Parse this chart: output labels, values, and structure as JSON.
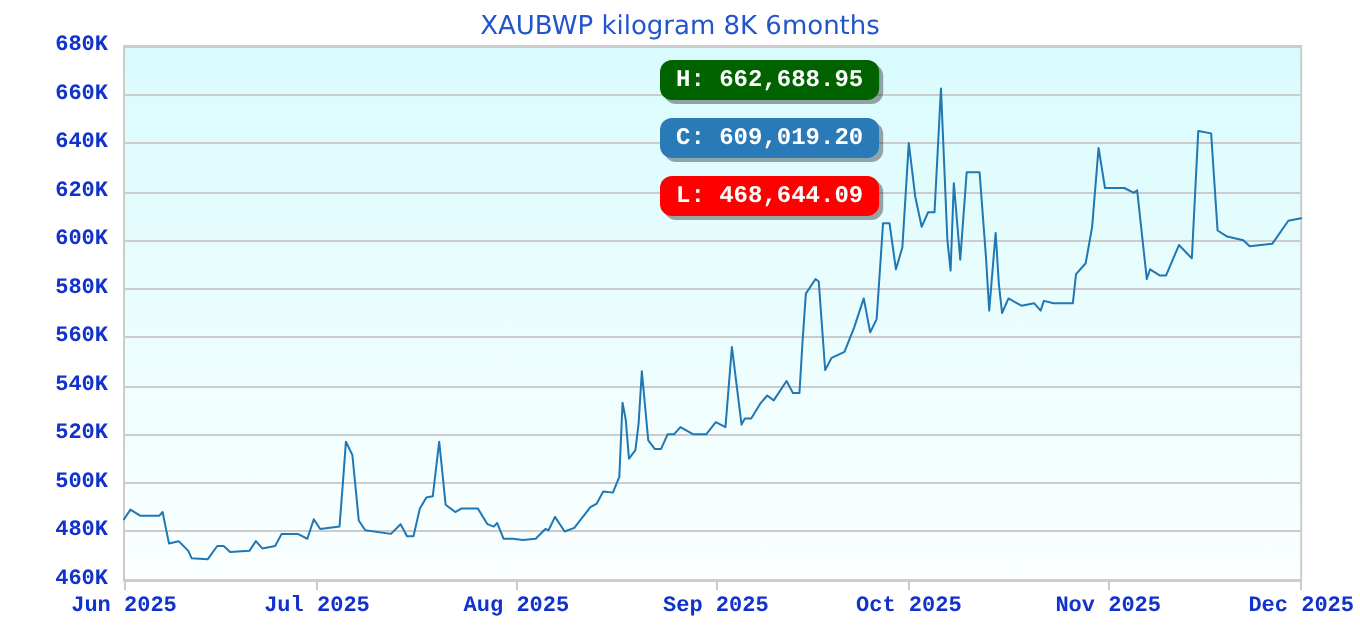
{
  "chart_data": {
    "type": "line",
    "title": "XAUBWP kilogram 8K 6months",
    "annotations": [
      "H: 662,688.95",
      "C: 609,019.20",
      "L: 468,644.09"
    ],
    "x": [
      "2025-06-01T00:00",
      "2025-06-02T00:00",
      "2025-06-03T12:00",
      "2025-06-06T12:00",
      "2025-06-07T00:00",
      "2025-06-08T00:00",
      "2025-06-09T12:00",
      "2025-06-11T00:00",
      "2025-06-11T12:00",
      "2025-06-14T00:00",
      "2025-06-15T12:00",
      "2025-06-16T12:00",
      "2025-06-17T12:00",
      "2025-06-20T12:00",
      "2025-06-21T12:00",
      "2025-06-22T12:00",
      "2025-06-24T12:00",
      "2025-06-25T12:00",
      "2025-06-28T00:00",
      "2025-06-29T12:00",
      "2025-06-30T12:00",
      "2025-07-01T12:00",
      "2025-07-04T12:00",
      "2025-07-05T00:00",
      "2025-07-05T12:00",
      "2025-07-06T12:00",
      "2025-07-07T12:00",
      "2025-07-08T12:00",
      "2025-07-12T12:00",
      "2025-07-14T00:00",
      "2025-07-15T00:00",
      "2025-07-16T00:00",
      "2025-07-17T00:00",
      "2025-07-18T00:00",
      "2025-07-19T00:00",
      "2025-07-20T00:00",
      "2025-07-21T00:00",
      "2025-07-22T12:00",
      "2025-07-23T12:00",
      "2025-07-26T00:00",
      "2025-07-27T12:00",
      "2025-07-28T12:00",
      "2025-07-29T00:00",
      "2025-07-30T00:00",
      "2025-07-31T12:00",
      "2025-08-02T00:00",
      "2025-08-04T00:00",
      "2025-08-05T12:00",
      "2025-08-06T00:00",
      "2025-08-07T00:00",
      "2025-08-08T12:00",
      "2025-08-10T00:00",
      "2025-08-12T12:00",
      "2025-08-13T12:00",
      "2025-08-14T12:00",
      "2025-08-16T00:00",
      "2025-08-17T00:00",
      "2025-08-17T12:00",
      "2025-08-18T00:00",
      "2025-08-18T12:00",
      "2025-08-19T12:00",
      "2025-08-20T00:00",
      "2025-08-20T12:00",
      "2025-08-21T12:00",
      "2025-08-22T12:00",
      "2025-08-23T12:00",
      "2025-08-24T12:00",
      "2025-08-25T12:00",
      "2025-08-26T12:00",
      "2025-08-28T12:00",
      "2025-08-30T12:00",
      "2025-09-01T00:00",
      "2025-09-02T12:00",
      "2025-09-03T12:00",
      "2025-09-05T00:00",
      "2025-09-05T12:00",
      "2025-09-06T12:00",
      "2025-09-08T00:00",
      "2025-09-09T00:00",
      "2025-09-10T00:00",
      "2025-09-12T00:00",
      "2025-09-13T00:00",
      "2025-09-14T00:00",
      "2025-09-14T12:00",
      "2025-09-15T00:00",
      "2025-09-16T12:00",
      "2025-09-17T00:00",
      "2025-09-18T00:00",
      "2025-09-19T00:00",
      "2025-09-21T00:00",
      "2025-09-22T12:00",
      "2025-09-24T00:00",
      "2025-09-25T00:00",
      "2025-09-26T00:00",
      "2025-09-27T00:00",
      "2025-09-28T00:00",
      "2025-09-29T00:00",
      "2025-09-30T00:00",
      "2025-10-01T00:00",
      "2025-10-02T00:00",
      "2025-10-03T00:00",
      "2025-10-04T00:00",
      "2025-10-05T00:00",
      "2025-10-06T00:00",
      "2025-10-07T00:00",
      "2025-10-07T12:00",
      "2025-10-08T00:00",
      "2025-10-09T00:00",
      "2025-10-10T00:00",
      "2025-10-12T00:00",
      "2025-10-13T00:00",
      "2025-10-13T12:00",
      "2025-10-14T12:00",
      "2025-10-15T00:00",
      "2025-10-15T12:00",
      "2025-10-16T12:00",
      "2025-10-18T12:00",
      "2025-10-20T12:00",
      "2025-10-21T12:00",
      "2025-10-22T00:00",
      "2025-10-23T12:00",
      "2025-10-26T12:00",
      "2025-10-27T00:00",
      "2025-10-28T12:00",
      "2025-10-29T12:00",
      "2025-10-30T12:00",
      "2025-10-31T12:00",
      "2025-11-03T12:00",
      "2025-11-05T00:00",
      "2025-11-05T12:00",
      "2025-11-07T00:00",
      "2025-11-07T12:00",
      "2025-11-09T00:00",
      "2025-11-10T00:00",
      "2025-11-12T00:00",
      "2025-11-14T00:00",
      "2025-11-15T00:00",
      "2025-11-17T00:00",
      "2025-11-18T00:00",
      "2025-11-19T12:00",
      "2025-11-22T00:00",
      "2025-11-23T00:00",
      "2025-11-26T12:00",
      "2025-11-29T00:00",
      "2025-12-01T00:00"
    ],
    "values": [
      485000,
      489000,
      486500,
      486500,
      488000,
      475000,
      476000,
      472000,
      469000,
      468500,
      474000,
      474000,
      471500,
      472000,
      476000,
      473000,
      474000,
      479000,
      479000,
      477000,
      485000,
      481000,
      482000,
      499000,
      517000,
      511500,
      484500,
      480500,
      479000,
      483000,
      478000,
      478000,
      489500,
      494000,
      494500,
      517000,
      491000,
      488000,
      489500,
      489500,
      483000,
      482000,
      483500,
      477000,
      477000,
      476500,
      477000,
      481000,
      480500,
      486000,
      480000,
      481500,
      490000,
      491500,
      496500,
      496000,
      502500,
      533000,
      526000,
      510000,
      513500,
      524500,
      546000,
      517500,
      514000,
      514000,
      520000,
      520000,
      523000,
      520000,
      520000,
      525000,
      523000,
      556000,
      524000,
      526500,
      526500,
      533000,
      536000,
      534000,
      542000,
      537000,
      537000,
      559000,
      578000,
      584000,
      583000,
      546500,
      551500,
      554000,
      564000,
      576000,
      562000,
      567500,
      607000,
      607000,
      588000,
      597000,
      640000,
      618000,
      605500,
      611500,
      611500,
      662500,
      600000,
      587500,
      623500,
      592000,
      628000,
      628000,
      593000,
      571000,
      603000,
      582000,
      570000,
      576000,
      573000,
      574000,
      571000,
      575000,
      574000,
      574000,
      586000,
      590500,
      605500,
      638000,
      621500,
      621500,
      619500,
      620500,
      584000,
      588000,
      585500,
      585500,
      598000,
      592500,
      645000,
      644000,
      604000,
      601500,
      600000,
      597500,
      598500,
      608000,
      609000
    ],
    "color": "#1f77b4",
    "xlim": [
      "2025-06-01T00:00",
      "2025-12-01T00:00"
    ],
    "xticks": [
      {
        "value": "2025-06-01",
        "label": "Jun 2025"
      },
      {
        "value": "2025-07-01",
        "label": "Jul 2025"
      },
      {
        "value": "2025-08-01",
        "label": "Aug 2025"
      },
      {
        "value": "2025-09-01",
        "label": "Sep 2025"
      },
      {
        "value": "2025-10-01",
        "label": "Oct 2025"
      },
      {
        "value": "2025-11-01",
        "label": "Nov 2025"
      },
      {
        "value": "2025-12-01",
        "label": "Dec 2025"
      }
    ],
    "ylim": [
      460000,
      680000
    ],
    "yticks": [
      {
        "value": 460000,
        "label": "460K"
      },
      {
        "value": 480000,
        "label": "480K"
      },
      {
        "value": 500000,
        "label": "500K"
      },
      {
        "value": 520000,
        "label": "520K"
      },
      {
        "value": 540000,
        "label": "540K"
      },
      {
        "value": 560000,
        "label": "560K"
      },
      {
        "value": 580000,
        "label": "580K"
      },
      {
        "value": 600000,
        "label": "600K"
      },
      {
        "value": 620000,
        "label": "620K"
      },
      {
        "value": 640000,
        "label": "640K"
      },
      {
        "value": 660000,
        "label": "660K"
      },
      {
        "value": 680000,
        "label": "680K"
      }
    ],
    "grid": "y",
    "marker": "none",
    "line_style": "solid"
  }
}
